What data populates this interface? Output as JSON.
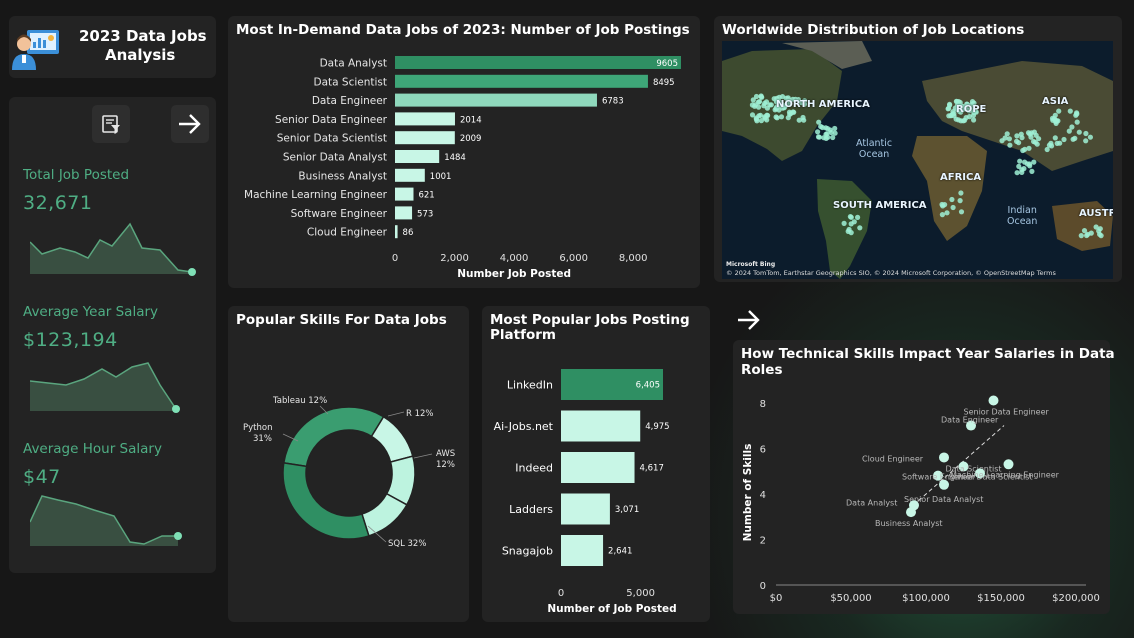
{
  "sidebar": {
    "title_line1": "2023 Data Jobs",
    "title_line2": "Analysis",
    "kpis": [
      {
        "label": "Total Job Posted",
        "value": "32,671"
      },
      {
        "label": "Average Year Salary",
        "value": "$123,194"
      },
      {
        "label": "Average Hour Salary",
        "value": "$47"
      }
    ]
  },
  "colors": {
    "accent": "#2f8f63",
    "light": "#a8ecd3",
    "mid": "#6fcaa6",
    "panel": "#232323",
    "background": "#171717"
  },
  "jobs_chart": {
    "title": "Most In-Demand Data Jobs of 2023: Number of Job Postings",
    "xlabel": "Number Job Posted",
    "ticks": [
      "0",
      "2,000",
      "4,000",
      "6,000",
      "8,000"
    ]
  },
  "map": {
    "title": "Worldwide Distribution of Job Locations",
    "labels": {
      "north_america": "NORTH AMERICA",
      "europe": "ROPE",
      "asia": "ASIA",
      "africa": "AFRICA",
      "south_america": "SOUTH AMERICA",
      "australia": "AUSTR"
    },
    "oceans": {
      "atlantic_1": "Atlantic",
      "atlantic_2": "Ocean",
      "indian_1": "Indian",
      "indian_2": "Ocean"
    },
    "attribution": "© 2024 TomTom, Earthstar Geographics SIO, © 2024 Microsoft Corporation, © OpenStreetMap  Terms",
    "logo": "Microsoft Bing"
  },
  "skills_chart": {
    "title": "Popular Skills For Data Jobs"
  },
  "platform_chart": {
    "title_line1": "Most Popular Jobs Posting",
    "title_line2": "Platform",
    "xlabel": "Number of Job Posted",
    "ticks": [
      "0",
      "5,000"
    ]
  },
  "scatter_chart": {
    "title_line1": "How Technical Skills Impact Year Salaries in Data",
    "title_line2": "Roles",
    "ylabel": "Number of Skills",
    "xticks": [
      "$0",
      "$50,000",
      "$100,000",
      "$150,000",
      "$200,000"
    ],
    "yticks": [
      "0",
      "2",
      "4",
      "6",
      "8"
    ]
  },
  "chart_data": [
    {
      "type": "bar",
      "orientation": "horizontal",
      "title": "Most In-Demand Data Jobs of 2023: Number of Job Postings",
      "xlabel": "Number Job Posted",
      "xlim": [
        0,
        9605
      ],
      "categories": [
        "Data Analyst",
        "Data Scientist",
        "Data Engineer",
        "Senior Data Engineer",
        "Senior Data Scientist",
        "Senior Data Analyst",
        "Business Analyst",
        "Machine Learning Engineer",
        "Software Engineer",
        "Cloud Engineer"
      ],
      "values": [
        9605,
        8495,
        6783,
        2014,
        2009,
        1484,
        1001,
        621,
        573,
        86
      ],
      "value_labels": [
        "9605",
        "8495",
        "6783",
        "2014",
        "2009",
        "1484",
        "1001",
        "621",
        "573",
        "86"
      ]
    },
    {
      "type": "pie",
      "donut": true,
      "title": "Popular Skills For Data Jobs",
      "labels": [
        "SQL",
        "Python",
        "Tableau",
        "R",
        "AWS"
      ],
      "values": [
        32,
        31,
        12,
        12,
        12
      ],
      "display_labels": [
        "SQL 32%",
        "Python",
        "Tableau 12%",
        "R 12%",
        "AWS"
      ],
      "display_pct": [
        "",
        "31%",
        "",
        "",
        "12%"
      ],
      "colors": [
        "#2f8f63",
        "#2f8f63",
        "#bdf3df",
        "#bdf3df",
        "#bdf3df"
      ]
    },
    {
      "type": "bar",
      "orientation": "horizontal",
      "title": "Most Popular Jobs Posting Platform",
      "xlabel": "Number of Job Posted",
      "xlim": [
        0,
        6405
      ],
      "categories": [
        "LinkedIn",
        "Ai-Jobs.net",
        "Indeed",
        "Ladders",
        "Snagajob"
      ],
      "values": [
        6405,
        4975,
        4617,
        3071,
        2641
      ],
      "value_labels": [
        "6,405",
        "4,975",
        "4,617",
        "3,071",
        "2,641"
      ]
    },
    {
      "type": "scatter",
      "title": "How Technical Skills Impact Year Salaries in Data Roles",
      "xlabel": "",
      "ylabel": "Number of Skills",
      "xlim": [
        0,
        200000
      ],
      "ylim": [
        0,
        9
      ],
      "points": [
        {
          "label": "Senior Data Engineer",
          "x": 145000,
          "y": 8.1
        },
        {
          "label": "Data Engineer",
          "x": 130000,
          "y": 7.0
        },
        {
          "label": "Senior Data Scientist",
          "x": 155000,
          "y": 5.3
        },
        {
          "label": "Cloud Engineer",
          "x": 112000,
          "y": 5.6
        },
        {
          "label": "Data Scientist",
          "x": 125000,
          "y": 5.2
        },
        {
          "label": "Software Engineer",
          "x": 108000,
          "y": 4.8
        },
        {
          "label": "Machine Learning Engineer",
          "x": 136000,
          "y": 4.9
        },
        {
          "label": "Senior Data Analyst",
          "x": 112000,
          "y": 4.4
        },
        {
          "label": "Data Analyst",
          "x": 92000,
          "y": 3.5
        },
        {
          "label": "Business Analyst",
          "x": 90000,
          "y": 3.2
        }
      ],
      "trendline": true
    }
  ]
}
